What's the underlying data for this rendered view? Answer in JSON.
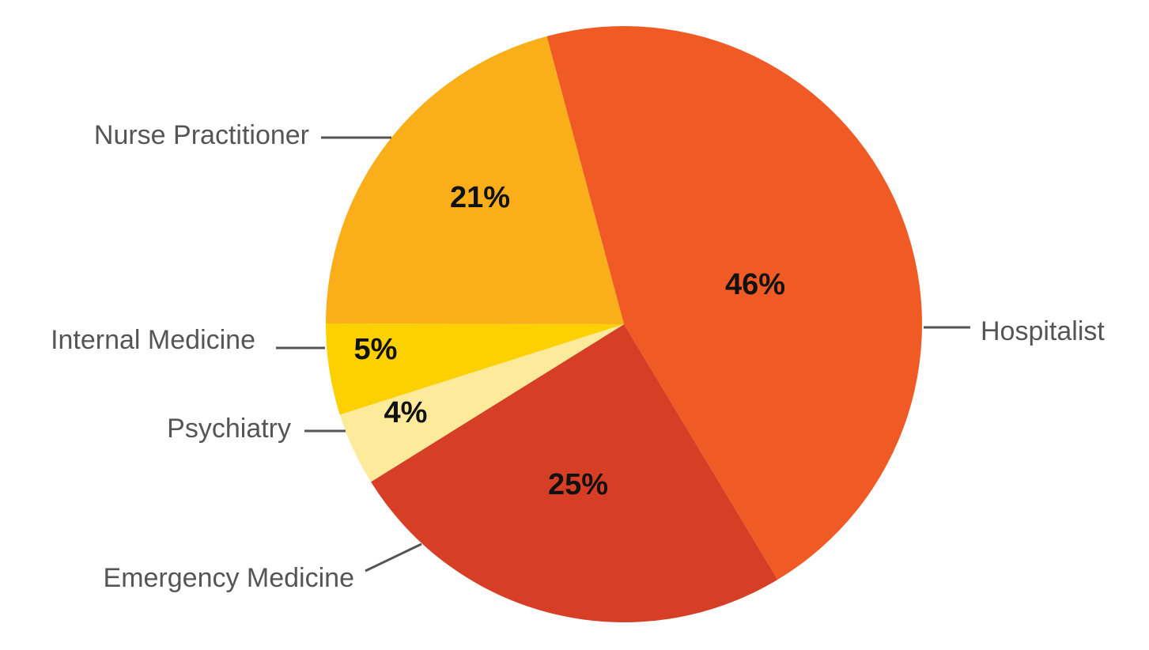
{
  "chart_data": {
    "type": "pie",
    "title": "",
    "start_angle_deg": -15,
    "direction": "clockwise",
    "slices": [
      {
        "label": "Hospitalist",
        "value": 46,
        "value_label": "46%",
        "color": "#F05A24"
      },
      {
        "label": "Emergency Medicine",
        "value": 25,
        "value_label": "25%",
        "color": "#D63F26"
      },
      {
        "label": "Psychiatry",
        "value": 4,
        "value_label": "4%",
        "color": "#FDEB9B"
      },
      {
        "label": "Internal Medicine",
        "value": 5,
        "value_label": "5%",
        "color": "#FDD000"
      },
      {
        "label": "Nurse Practitioner",
        "value": 21,
        "value_label": "21%",
        "color": "#F9AE1A"
      }
    ]
  }
}
